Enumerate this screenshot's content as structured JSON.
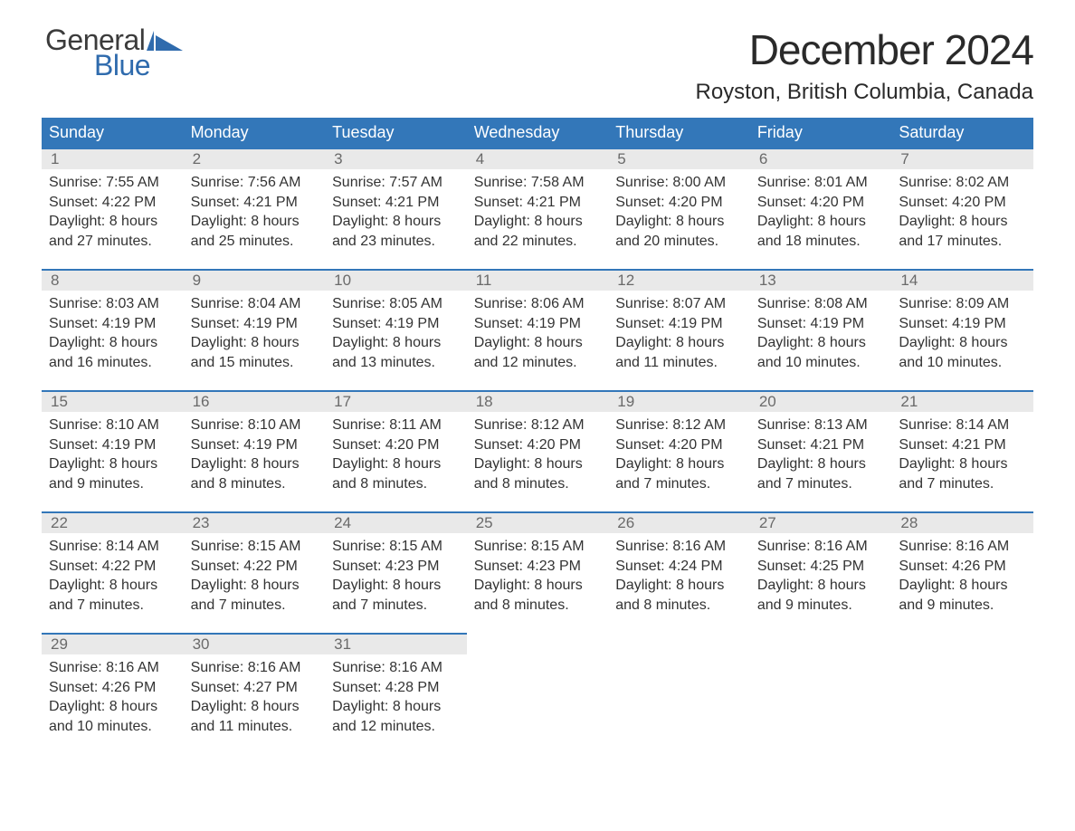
{
  "brand": {
    "word1": "General",
    "word2": "Blue",
    "icon_color": "#2f6bad"
  },
  "title": "December 2024",
  "location": "Royston, British Columbia, Canada",
  "colors": {
    "header_bg": "#3377b9",
    "header_text": "#ffffff",
    "daynum_bg": "#e9e9e9",
    "daynum_text": "#6a6a6a",
    "body_text": "#333333",
    "rule": "#3377b9",
    "brand_blue": "#2f6bad"
  },
  "day_names": [
    "Sunday",
    "Monday",
    "Tuesday",
    "Wednesday",
    "Thursday",
    "Friday",
    "Saturday"
  ],
  "weeks": [
    [
      {
        "n": "1",
        "sunrise": "7:55 AM",
        "sunset": "4:22 PM",
        "dl1": "Daylight: 8 hours",
        "dl2": "and 27 minutes."
      },
      {
        "n": "2",
        "sunrise": "7:56 AM",
        "sunset": "4:21 PM",
        "dl1": "Daylight: 8 hours",
        "dl2": "and 25 minutes."
      },
      {
        "n": "3",
        "sunrise": "7:57 AM",
        "sunset": "4:21 PM",
        "dl1": "Daylight: 8 hours",
        "dl2": "and 23 minutes."
      },
      {
        "n": "4",
        "sunrise": "7:58 AM",
        "sunset": "4:21 PM",
        "dl1": "Daylight: 8 hours",
        "dl2": "and 22 minutes."
      },
      {
        "n": "5",
        "sunrise": "8:00 AM",
        "sunset": "4:20 PM",
        "dl1": "Daylight: 8 hours",
        "dl2": "and 20 minutes."
      },
      {
        "n": "6",
        "sunrise": "8:01 AM",
        "sunset": "4:20 PM",
        "dl1": "Daylight: 8 hours",
        "dl2": "and 18 minutes."
      },
      {
        "n": "7",
        "sunrise": "8:02 AM",
        "sunset": "4:20 PM",
        "dl1": "Daylight: 8 hours",
        "dl2": "and 17 minutes."
      }
    ],
    [
      {
        "n": "8",
        "sunrise": "8:03 AM",
        "sunset": "4:19 PM",
        "dl1": "Daylight: 8 hours",
        "dl2": "and 16 minutes."
      },
      {
        "n": "9",
        "sunrise": "8:04 AM",
        "sunset": "4:19 PM",
        "dl1": "Daylight: 8 hours",
        "dl2": "and 15 minutes."
      },
      {
        "n": "10",
        "sunrise": "8:05 AM",
        "sunset": "4:19 PM",
        "dl1": "Daylight: 8 hours",
        "dl2": "and 13 minutes."
      },
      {
        "n": "11",
        "sunrise": "8:06 AM",
        "sunset": "4:19 PM",
        "dl1": "Daylight: 8 hours",
        "dl2": "and 12 minutes."
      },
      {
        "n": "12",
        "sunrise": "8:07 AM",
        "sunset": "4:19 PM",
        "dl1": "Daylight: 8 hours",
        "dl2": "and 11 minutes."
      },
      {
        "n": "13",
        "sunrise": "8:08 AM",
        "sunset": "4:19 PM",
        "dl1": "Daylight: 8 hours",
        "dl2": "and 10 minutes."
      },
      {
        "n": "14",
        "sunrise": "8:09 AM",
        "sunset": "4:19 PM",
        "dl1": "Daylight: 8 hours",
        "dl2": "and 10 minutes."
      }
    ],
    [
      {
        "n": "15",
        "sunrise": "8:10 AM",
        "sunset": "4:19 PM",
        "dl1": "Daylight: 8 hours",
        "dl2": "and 9 minutes."
      },
      {
        "n": "16",
        "sunrise": "8:10 AM",
        "sunset": "4:19 PM",
        "dl1": "Daylight: 8 hours",
        "dl2": "and 8 minutes."
      },
      {
        "n": "17",
        "sunrise": "8:11 AM",
        "sunset": "4:20 PM",
        "dl1": "Daylight: 8 hours",
        "dl2": "and 8 minutes."
      },
      {
        "n": "18",
        "sunrise": "8:12 AM",
        "sunset": "4:20 PM",
        "dl1": "Daylight: 8 hours",
        "dl2": "and 8 minutes."
      },
      {
        "n": "19",
        "sunrise": "8:12 AM",
        "sunset": "4:20 PM",
        "dl1": "Daylight: 8 hours",
        "dl2": "and 7 minutes."
      },
      {
        "n": "20",
        "sunrise": "8:13 AM",
        "sunset": "4:21 PM",
        "dl1": "Daylight: 8 hours",
        "dl2": "and 7 minutes."
      },
      {
        "n": "21",
        "sunrise": "8:14 AM",
        "sunset": "4:21 PM",
        "dl1": "Daylight: 8 hours",
        "dl2": "and 7 minutes."
      }
    ],
    [
      {
        "n": "22",
        "sunrise": "8:14 AM",
        "sunset": "4:22 PM",
        "dl1": "Daylight: 8 hours",
        "dl2": "and 7 minutes."
      },
      {
        "n": "23",
        "sunrise": "8:15 AM",
        "sunset": "4:22 PM",
        "dl1": "Daylight: 8 hours",
        "dl2": "and 7 minutes."
      },
      {
        "n": "24",
        "sunrise": "8:15 AM",
        "sunset": "4:23 PM",
        "dl1": "Daylight: 8 hours",
        "dl2": "and 7 minutes."
      },
      {
        "n": "25",
        "sunrise": "8:15 AM",
        "sunset": "4:23 PM",
        "dl1": "Daylight: 8 hours",
        "dl2": "and 8 minutes."
      },
      {
        "n": "26",
        "sunrise": "8:16 AM",
        "sunset": "4:24 PM",
        "dl1": "Daylight: 8 hours",
        "dl2": "and 8 minutes."
      },
      {
        "n": "27",
        "sunrise": "8:16 AM",
        "sunset": "4:25 PM",
        "dl1": "Daylight: 8 hours",
        "dl2": "and 9 minutes."
      },
      {
        "n": "28",
        "sunrise": "8:16 AM",
        "sunset": "4:26 PM",
        "dl1": "Daylight: 8 hours",
        "dl2": "and 9 minutes."
      }
    ],
    [
      {
        "n": "29",
        "sunrise": "8:16 AM",
        "sunset": "4:26 PM",
        "dl1": "Daylight: 8 hours",
        "dl2": "and 10 minutes."
      },
      {
        "n": "30",
        "sunrise": "8:16 AM",
        "sunset": "4:27 PM",
        "dl1": "Daylight: 8 hours",
        "dl2": "and 11 minutes."
      },
      {
        "n": "31",
        "sunrise": "8:16 AM",
        "sunset": "4:28 PM",
        "dl1": "Daylight: 8 hours",
        "dl2": "and 12 minutes."
      },
      null,
      null,
      null,
      null
    ]
  ],
  "labels": {
    "sunrise_prefix": "Sunrise: ",
    "sunset_prefix": "Sunset: "
  }
}
